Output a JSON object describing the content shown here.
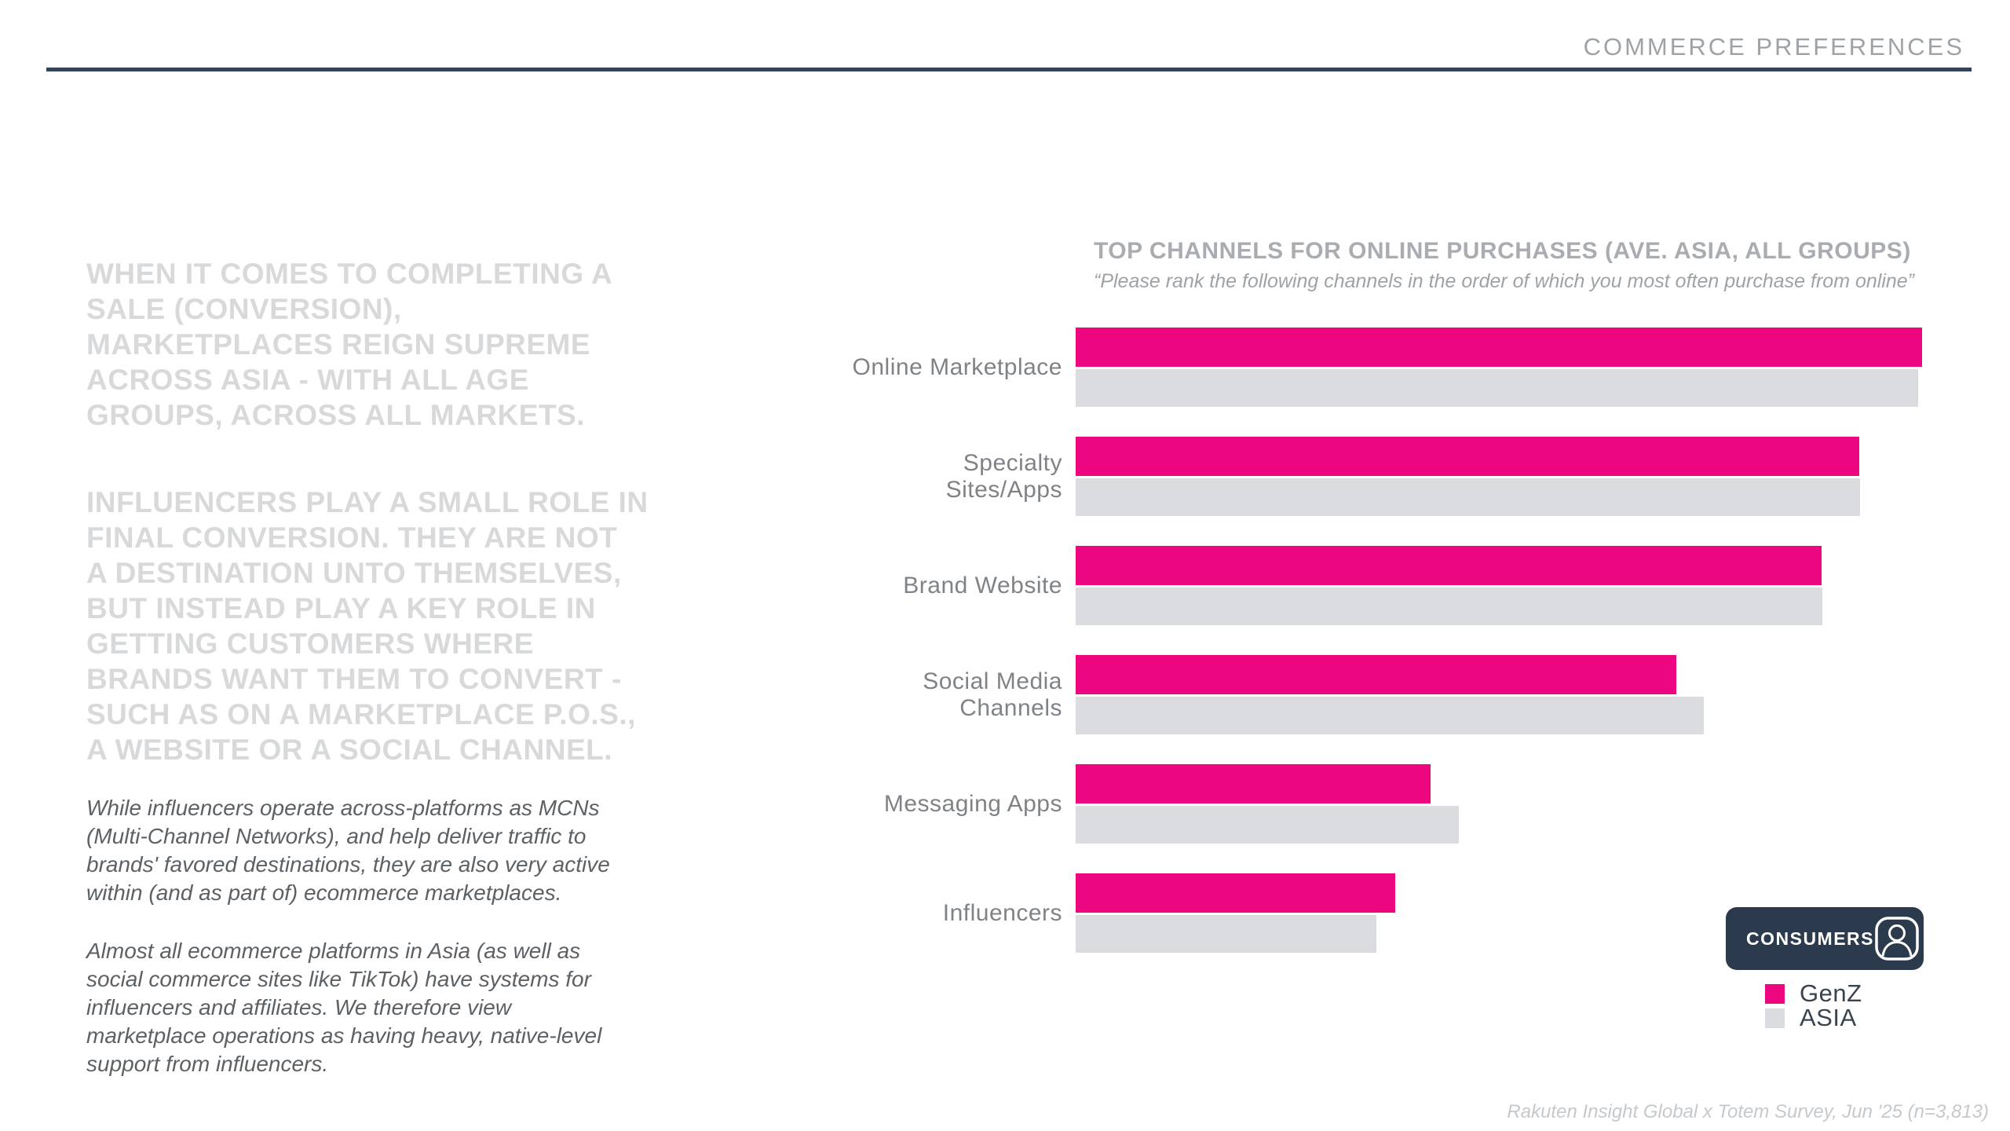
{
  "header": {
    "title": "COMMERCE PREFERENCES"
  },
  "left_column": {
    "headline_1": "WHEN IT COMES TO COMPLETING A\nSALE (CONVERSION),\nMARKETPLACES REIGN SUPREME\nACROSS ASIA - WITH ALL AGE\nGROUPS, ACROSS ALL MARKETS.",
    "headline_2": "INFLUENCERS PLAY A SMALL ROLE IN\nFINAL CONVERSION. THEY ARE NOT\nA DESTINATION UNTO THEMSELVES,\nBUT INSTEAD PLAY A KEY ROLE IN\nGETTING CUSTOMERS WHERE\nBRANDS WANT THEM TO CONVERT -\nSUCH AS ON A MARKETPLACE P.O.S.,\nA WEBSITE OR A SOCIAL CHANNEL.",
    "body_1": "While influencers operate across-platforms as MCNs\n(Multi-Channel Networks), and help deliver traffic to\nbrands' favored destinations, they are also very active\nwithin (and as part of) ecommerce marketplaces.",
    "body_2": "Almost all ecommerce platforms in Asia (as well as\nsocial commerce sites like TikTok) have systems for\ninfluencers and affiliates. We therefore view\nmarketplace operations as having heavy, native-level\nsupport from influencers."
  },
  "chart_data": {
    "type": "bar",
    "orientation": "horizontal",
    "title": "TOP CHANNELS FOR ONLINE PURCHASES (AVE. ASIA, ALL GROUPS)",
    "subtitle": "“Please rank the following channels in the order of which you most often purchase from online”",
    "categories": [
      "Online Marketplace",
      "Specialty Sites/Apps",
      "Brand Website",
      "Social Media Channels",
      "Messaging Apps",
      "Influencers"
    ],
    "series": [
      {
        "name": "GenZ",
        "color": "#EC067F",
        "values_pct_of_max": [
          100,
          92.6,
          88.1,
          71.0,
          41.9,
          37.8
        ]
      },
      {
        "name": "ASIA",
        "color": "#DBDCDF",
        "values_pct_of_max": [
          99.5,
          92.7,
          88.2,
          74.2,
          45.3,
          35.5
        ]
      }
    ],
    "value_axis": "no numeric axis or data labels shown; values estimated as percent of the longest bar (Online Marketplace, GenZ)",
    "grid": false,
    "legend_position": "bottom-right"
  },
  "badge": {
    "label": "CONSUMERS",
    "icon": "person-icon"
  },
  "legend": [
    {
      "label": "GenZ",
      "color": "#EC067F"
    },
    {
      "label": "ASIA",
      "color": "#DBDCDF"
    }
  ],
  "footnote": "Rakuten Insight Global x Totem Survey, Jun '25 (n=3,813)",
  "colors": {
    "accent_pink": "#EC067F",
    "bar_gray": "#DBDCDF",
    "navy": "#2B3B4D",
    "rule_navy": "#31445A",
    "headline_gray": "#D8D9DA",
    "body_gray": "#5C6166",
    "title_gray": "#A9ADB2",
    "label_gray": "#7F8388",
    "footnote_gray": "#C6C9CC"
  }
}
